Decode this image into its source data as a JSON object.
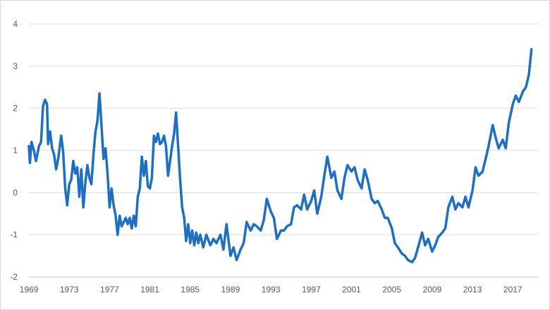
{
  "chart_data": {
    "type": "line",
    "title": "",
    "xlabel": "",
    "ylabel": "",
    "xlim": [
      1969.0,
      2019.5
    ],
    "ylim": [
      -2,
      4
    ],
    "yticks": [
      -2,
      -1,
      0,
      1,
      2,
      3,
      4
    ],
    "xticks": [
      1969,
      1973,
      1977,
      1981,
      1985,
      1989,
      1993,
      1997,
      2001,
      2005,
      2009,
      2013,
      2017
    ],
    "grid": "horizontal",
    "legend": "none",
    "line_color": "#1f6fc1",
    "series": [
      {
        "x": [
          1969.0,
          1969.1,
          1969.25,
          1969.5,
          1969.7,
          1970.0,
          1970.2,
          1970.4,
          1970.6,
          1970.8,
          1970.9,
          1971.1,
          1971.3,
          1971.5,
          1971.7,
          1971.9,
          1972.2,
          1972.4,
          1972.6,
          1972.8,
          1973.0,
          1973.2,
          1973.4,
          1973.6,
          1973.8,
          1974.0,
          1974.2,
          1974.4,
          1974.6,
          1974.8,
          1975.0,
          1975.2,
          1975.4,
          1975.6,
          1975.8,
          1976.0,
          1976.2,
          1976.4,
          1976.6,
          1976.8,
          1977.0,
          1977.2,
          1977.4,
          1977.6,
          1977.8,
          1978.0,
          1978.2,
          1978.4,
          1978.6,
          1978.8,
          1979.0,
          1979.2,
          1979.4,
          1979.6,
          1979.8,
          1980.0,
          1980.2,
          1980.4,
          1980.6,
          1980.8,
          1981.0,
          1981.2,
          1981.4,
          1981.6,
          1981.8,
          1982.0,
          1982.2,
          1982.4,
          1982.6,
          1982.8,
          1983.0,
          1983.2,
          1983.4,
          1983.6,
          1983.8,
          1984.0,
          1984.2,
          1984.4,
          1984.6,
          1984.8,
          1985.0,
          1985.2,
          1985.4,
          1985.6,
          1985.8,
          1986.0,
          1986.3,
          1986.6,
          1987.0,
          1987.3,
          1987.6,
          1988.0,
          1988.3,
          1988.6,
          1989.0,
          1989.3,
          1989.6,
          1990.0,
          1990.3,
          1990.6,
          1991.0,
          1991.3,
          1991.6,
          1992.0,
          1992.3,
          1992.6,
          1993.0,
          1993.3,
          1993.6,
          1994.0,
          1994.3,
          1994.6,
          1995.0,
          1995.3,
          1995.6,
          1996.0,
          1996.3,
          1996.6,
          1997.0,
          1997.3,
          1997.6,
          1998.0,
          1998.3,
          1998.6,
          1999.0,
          1999.3,
          1999.6,
          2000.0,
          2000.3,
          2000.6,
          2001.0,
          2001.3,
          2001.6,
          2002.0,
          2002.3,
          2002.6,
          2003.0,
          2003.3,
          2003.6,
          2004.0,
          2004.3,
          2004.6,
          2005.0,
          2005.3,
          2005.6,
          2006.0,
          2006.3,
          2006.6,
          2007.0,
          2007.3,
          2007.6,
          2008.0,
          2008.3,
          2008.6,
          2009.0,
          2009.3,
          2009.6,
          2010.0,
          2010.3,
          2010.6,
          2011.0,
          2011.3,
          2011.6,
          2012.0,
          2012.3,
          2012.6,
          2013.0,
          2013.3,
          2013.6,
          2014.0,
          2014.3,
          2014.6,
          2015.0,
          2015.3,
          2015.6,
          2016.0,
          2016.3,
          2016.6,
          2017.0,
          2017.3,
          2017.6,
          2018.0,
          2018.3,
          2018.6,
          2018.85
        ],
        "y": [
          1.1,
          0.7,
          1.2,
          1.0,
          0.75,
          1.1,
          1.2,
          2.05,
          2.2,
          2.1,
          1.15,
          1.45,
          1.05,
          0.9,
          0.55,
          0.8,
          1.35,
          0.95,
          0.1,
          -0.3,
          0.2,
          0.3,
          0.75,
          0.45,
          0.6,
          -0.1,
          0.55,
          -0.35,
          0.25,
          0.65,
          0.35,
          0.2,
          0.9,
          1.45,
          1.7,
          2.35,
          1.6,
          0.8,
          1.05,
          0.45,
          -0.35,
          0.1,
          -0.3,
          -0.55,
          -1.0,
          -0.55,
          -0.8,
          -0.7,
          -0.6,
          -0.75,
          -0.6,
          -0.85,
          -0.55,
          -0.8,
          -0.1,
          0.1,
          0.85,
          0.4,
          0.75,
          0.15,
          0.1,
          0.35,
          1.35,
          1.2,
          1.4,
          1.15,
          1.2,
          1.35,
          1.1,
          0.4,
          0.75,
          1.1,
          1.4,
          1.9,
          1.1,
          0.3,
          -0.35,
          -0.6,
          -1.15,
          -0.75,
          -1.2,
          -0.9,
          -1.25,
          -0.95,
          -1.2,
          -1.0,
          -1.3,
          -1.0,
          -1.25,
          -1.1,
          -1.2,
          -1.0,
          -1.35,
          -0.75,
          -1.5,
          -1.3,
          -1.6,
          -1.35,
          -1.2,
          -0.7,
          -0.9,
          -0.75,
          -0.8,
          -0.9,
          -0.65,
          -0.15,
          -0.45,
          -0.6,
          -1.1,
          -0.9,
          -0.9,
          -0.8,
          -0.75,
          -0.35,
          -0.3,
          -0.4,
          -0.05,
          -0.4,
          -0.2,
          0.05,
          -0.5,
          -0.1,
          0.4,
          0.85,
          0.35,
          0.5,
          0.05,
          -0.15,
          0.35,
          0.65,
          0.5,
          0.6,
          0.3,
          0.1,
          0.55,
          0.3,
          -0.15,
          -0.25,
          -0.2,
          -0.4,
          -0.6,
          -0.6,
          -0.85,
          -1.2,
          -1.3,
          -1.45,
          -1.5,
          -1.6,
          -1.65,
          -1.55,
          -1.3,
          -0.95,
          -1.25,
          -1.1,
          -1.4,
          -1.25,
          -1.05,
          -0.95,
          -0.85,
          -0.35,
          -0.1,
          -0.4,
          -0.25,
          -0.35,
          -0.1,
          -0.35,
          0.05,
          0.6,
          0.4,
          0.5,
          0.8,
          1.1,
          1.6,
          1.3,
          1.05,
          1.25,
          1.05,
          1.65,
          2.1,
          2.3,
          2.15,
          2.4,
          2.5,
          2.8,
          3.4
        ]
      }
    ]
  }
}
